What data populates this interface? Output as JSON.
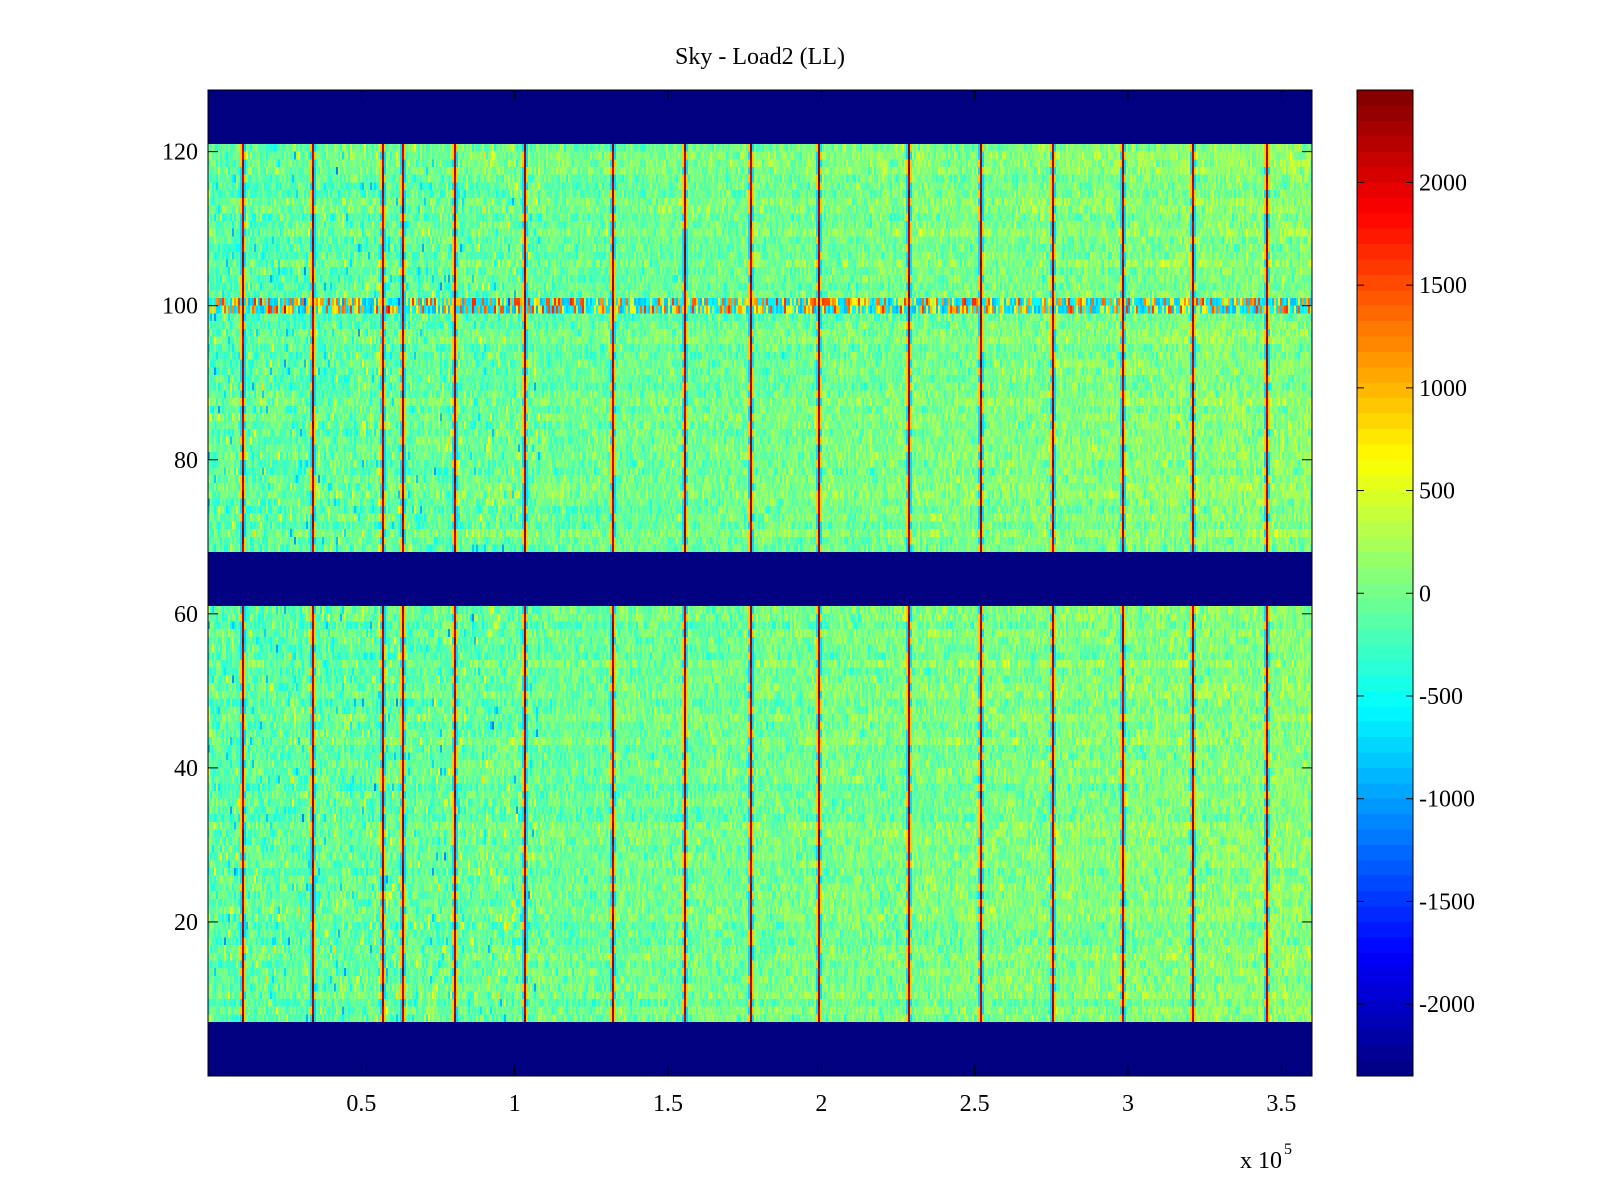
{
  "chart_data": {
    "type": "heatmap",
    "title": "Sky - Load2 (LL)",
    "xlabel": "",
    "ylabel": "",
    "x_exponent_label": "x 10",
    "x_exponent_power": "5",
    "xlim": [
      0,
      360000
    ],
    "ylim": [
      0,
      128
    ],
    "x_ticks": [
      50000,
      100000,
      150000,
      200000,
      250000,
      300000,
      350000
    ],
    "x_tick_labels": [
      "0.5",
      "1",
      "1.5",
      "2",
      "2.5",
      "3",
      "3.5"
    ],
    "y_ticks": [
      20,
      40,
      60,
      80,
      100,
      120
    ],
    "y_tick_labels": [
      "20",
      "40",
      "60",
      "80",
      "100",
      "120"
    ],
    "colormap": "jet",
    "clim": [
      -2350,
      2450
    ],
    "colorbar_ticks": [
      2000,
      1500,
      1000,
      500,
      0,
      -500,
      -1000,
      -1500,
      -2000
    ],
    "colorbar_tick_labels": [
      "2000",
      "1500",
      "1000",
      "500",
      "0",
      "-500",
      "-1000",
      "-1500",
      "-2000"
    ],
    "masked_row_bands": [
      [
        0,
        7
      ],
      [
        61,
        68
      ],
      [
        121,
        128
      ]
    ],
    "masked_value": -2350,
    "vertical_spike_columns": [
      11000,
      34000,
      57000,
      63000,
      80000,
      103000,
      132000,
      155000,
      177000,
      199000,
      228000,
      252000,
      275000,
      298000,
      321000,
      345000
    ],
    "high_variance_row": 100,
    "typical_value_range": [
      -500,
      500
    ],
    "grid": false,
    "colors": {
      "background": "#ffffff",
      "axes": "#000000",
      "masked": "#00008f"
    }
  }
}
